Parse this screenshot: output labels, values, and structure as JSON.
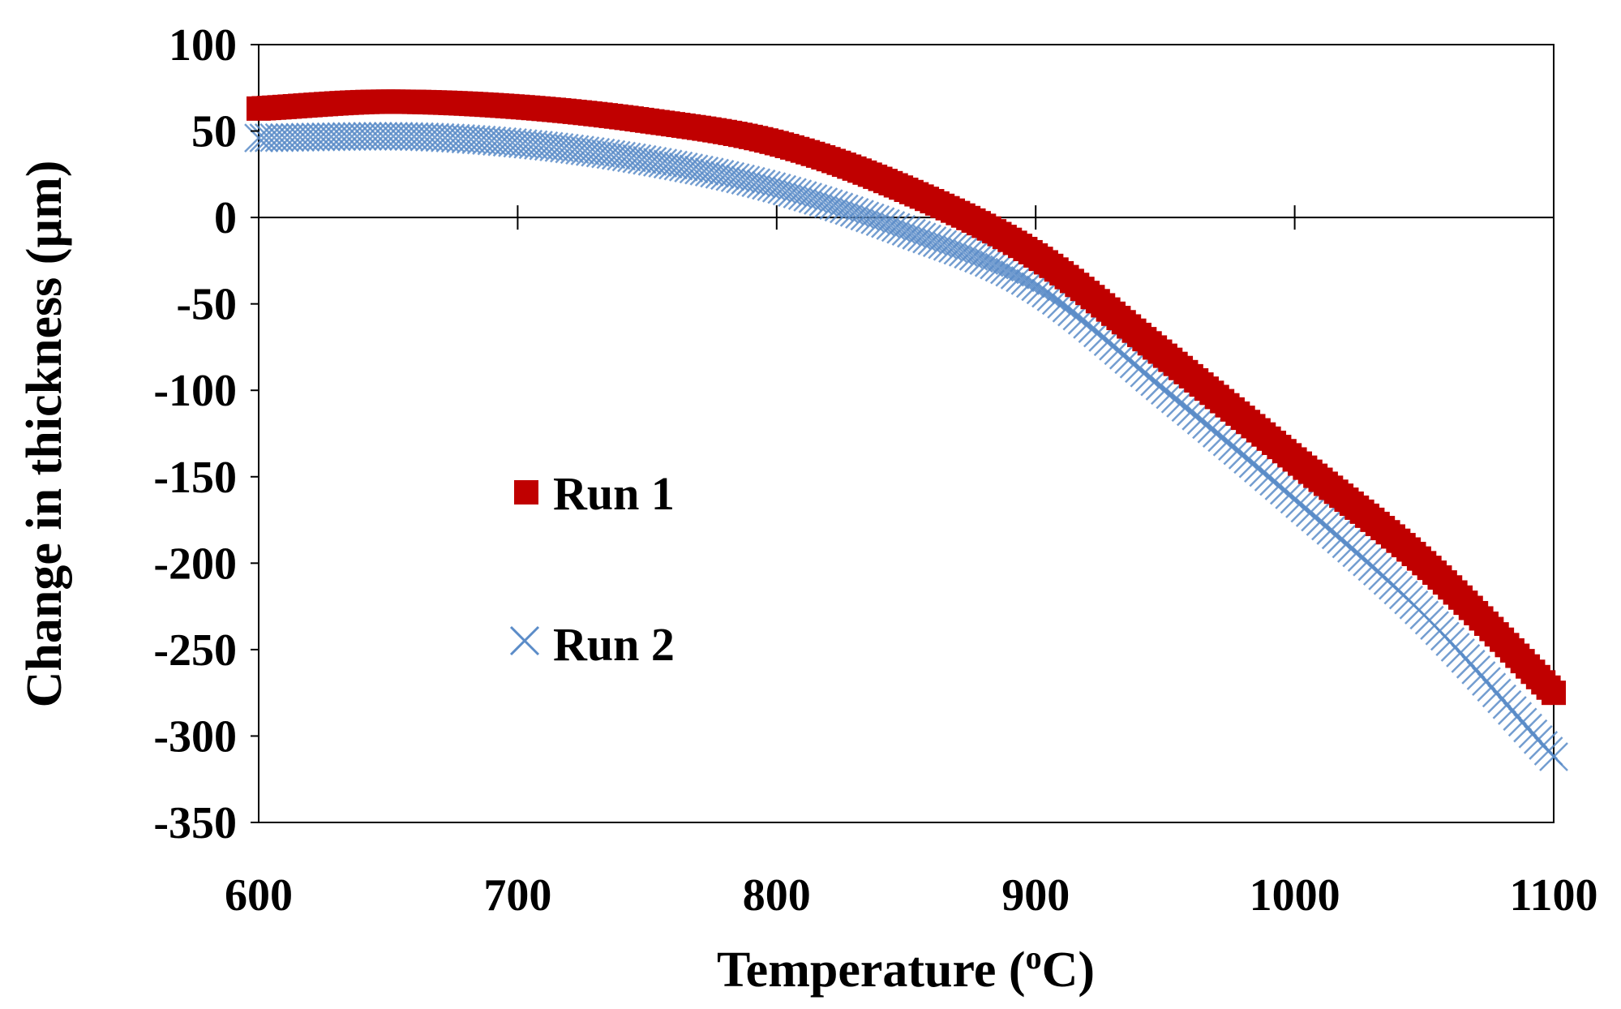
{
  "chart_data": {
    "type": "scatter",
    "title": "",
    "xlabel_main": "Temperature (",
    "xlabel_sup": "o",
    "xlabel_end": "C)",
    "ylabel": "Change in thickness (µm)",
    "xlim": [
      600,
      1100
    ],
    "ylim": [
      -350,
      100
    ],
    "x_ticks": [
      600,
      700,
      800,
      900,
      1000,
      1100
    ],
    "y_ticks": [
      100,
      50,
      0,
      -50,
      -100,
      -150,
      -200,
      -250,
      -300,
      -350
    ],
    "x_tick_labels": [
      "600",
      "700",
      "800",
      "900",
      "1000",
      "1100"
    ],
    "y_tick_labels": [
      "100",
      "50",
      "0",
      "-50",
      "-100",
      "-150",
      "-200",
      "-250",
      "-300",
      "-350"
    ],
    "grid": false,
    "legend_position": "center-left",
    "series": [
      {
        "name": "Run 1",
        "marker": "square",
        "color": "#C00000",
        "x": [
          600,
          650,
          700,
          750,
          800,
          850,
          900,
          950,
          1000,
          1050,
          1100
        ],
        "y": [
          63,
          67,
          64,
          56,
          43,
          16,
          -22,
          -80,
          -140,
          -200,
          -275
        ]
      },
      {
        "name": "Run 2",
        "marker": "x",
        "color": "#5B8CC8",
        "x": [
          600,
          650,
          700,
          750,
          800,
          850,
          900,
          950,
          1000,
          1050,
          1100
        ],
        "y": [
          46,
          47,
          43,
          33,
          17,
          -8,
          -40,
          -100,
          -163,
          -230,
          -312
        ]
      }
    ]
  }
}
